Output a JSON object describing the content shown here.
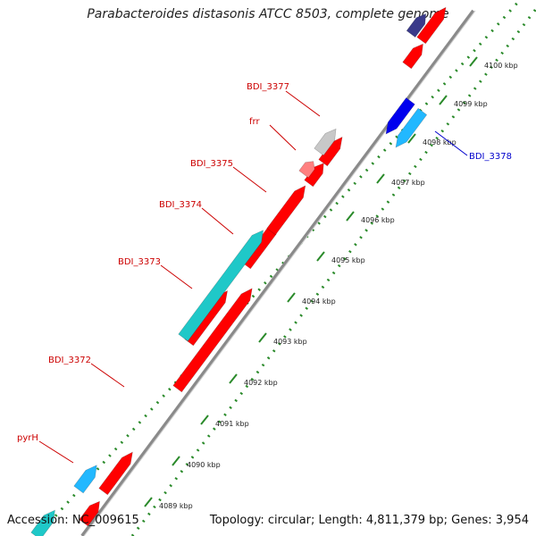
{
  "title": "Parabacteroides distasonis ATCC 8503, complete genome",
  "footer": {
    "accession": "Accession: NC_009615",
    "summary": "Topology: circular; Length: 4,811,379 bp; Genes: 3,954"
  },
  "colors": {
    "reverse_gene": "#ff0000",
    "forward_gene_cyan": "#1fc8c8",
    "forward_gene_blue": "#0000ee",
    "forward_gene_lightblue": "#22b8ff",
    "selected_gene_gray": "#c8c8c8",
    "rrna_pink": "#ff8080",
    "axis_gray": "#888888",
    "tick_green": "#2a8a2a",
    "label_red": "#cc0000",
    "label_blue": "#0000cc"
  },
  "ruler": {
    "unit": "kbp",
    "ticks": [
      "4089 kbp",
      "4090 kbp",
      "4091 kbp",
      "4092 kbp",
      "4093 kbp",
      "4094 kbp",
      "4095 kbp",
      "4096 kbp",
      "4097 kbp",
      "4098 kbp",
      "4099 kbp",
      "4100 kbp"
    ]
  },
  "gene_labels": [
    {
      "name": "BDI_3377",
      "color": "red"
    },
    {
      "name": "frr",
      "color": "red"
    },
    {
      "name": "BDI_3375",
      "color": "red"
    },
    {
      "name": "BDI_3374",
      "color": "red"
    },
    {
      "name": "BDI_3373",
      "color": "red"
    },
    {
      "name": "BDI_3372",
      "color": "red"
    },
    {
      "name": "pyrH",
      "color": "red"
    },
    {
      "name": "BDI_3378",
      "color": "blue"
    }
  ]
}
